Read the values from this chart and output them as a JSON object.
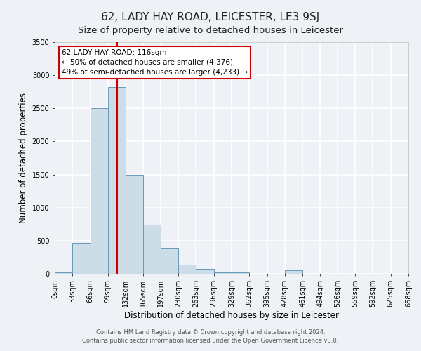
{
  "title": "62, LADY HAY ROAD, LEICESTER, LE3 9SJ",
  "subtitle": "Size of property relative to detached houses in Leicester",
  "xlabel": "Distribution of detached houses by size in Leicester",
  "ylabel": "Number of detached properties",
  "bin_edges": [
    0,
    33,
    66,
    99,
    132,
    165,
    197,
    230,
    263,
    296,
    329,
    362,
    395,
    428,
    461,
    494,
    526,
    559,
    592,
    625,
    658
  ],
  "bin_labels": [
    "0sqm",
    "33sqm",
    "66sqm",
    "99sqm",
    "132sqm",
    "165sqm",
    "197sqm",
    "230sqm",
    "263sqm",
    "296sqm",
    "329sqm",
    "362sqm",
    "395sqm",
    "428sqm",
    "461sqm",
    "494sqm",
    "526sqm",
    "559sqm",
    "592sqm",
    "625sqm",
    "658sqm"
  ],
  "bar_heights": [
    25,
    470,
    2500,
    2820,
    1500,
    740,
    390,
    140,
    75,
    20,
    20,
    0,
    0,
    55,
    0,
    0,
    0,
    0,
    0,
    0
  ],
  "bar_color": "#ccdde8",
  "bar_edge_color": "#6699bb",
  "vline_x": 116,
  "vline_color": "#cc0000",
  "ylim": [
    0,
    3500
  ],
  "annotation_title": "62 LADY HAY ROAD: 116sqm",
  "annotation_line1": "← 50% of detached houses are smaller (4,376)",
  "annotation_line2": "49% of semi-detached houses are larger (4,233) →",
  "annotation_box_color": "#cc0000",
  "footer_line1": "Contains HM Land Registry data © Crown copyright and database right 2024.",
  "footer_line2": "Contains public sector information licensed under the Open Government Licence v3.0.",
  "background_color": "#eef2f7",
  "grid_color": "#ffffff",
  "title_fontsize": 11,
  "subtitle_fontsize": 9.5,
  "axis_label_fontsize": 8.5,
  "tick_fontsize": 7,
  "footer_fontsize": 6,
  "annotation_fontsize": 7.5
}
